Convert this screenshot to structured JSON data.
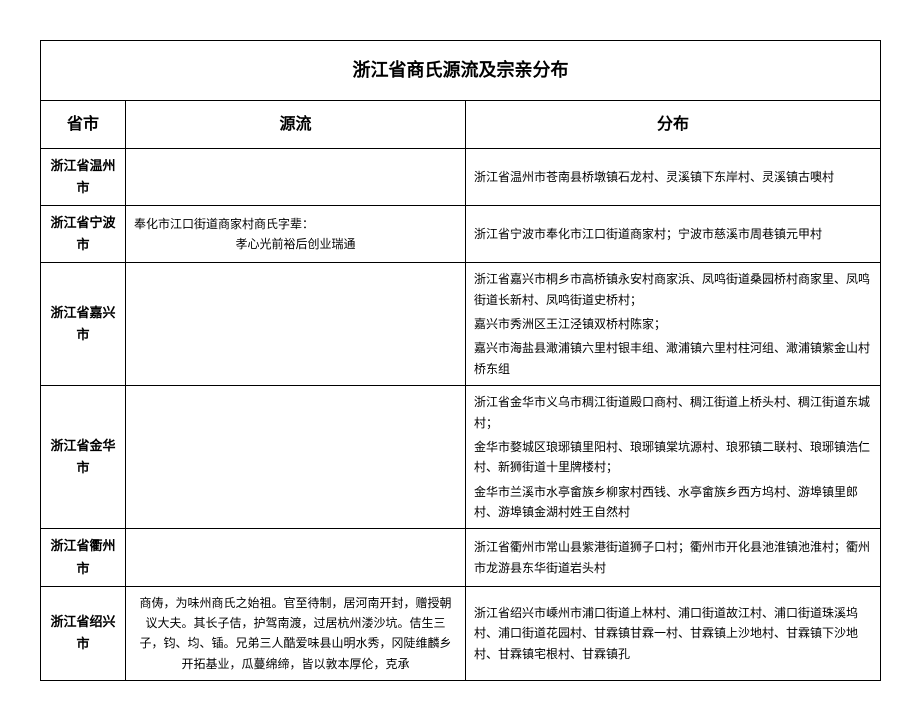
{
  "title": "浙江省商氏源流及宗亲分布",
  "headers": {
    "city": "省市",
    "origin": "源流",
    "distribution": "分布"
  },
  "rows": [
    {
      "city": "浙江省温州市",
      "origin_lines": [],
      "dist_lines": [
        "浙江省温州市苍南县桥墩镇石龙村、灵溪镇下东岸村、灵溪镇古噢村"
      ]
    },
    {
      "city": "浙江省宁波市",
      "origin_lines": [
        "奉化市江口街道商家村商氏字辈：",
        "孝心光前裕后创业瑞通"
      ],
      "dist_lines": [
        "浙江省宁波市奉化市江口街道商家村；宁波市慈溪市周巷镇元甲村"
      ]
    },
    {
      "city": "浙江省嘉兴市",
      "origin_lines": [],
      "dist_lines": [
        "浙江省嘉兴市桐乡市高桥镇永安村商家浜、凤鸣街道桑园桥村商家里、凤鸣街道长新村、凤鸣街道史桥村；",
        "嘉兴市秀洲区王江泾镇双桥村陈家；",
        "嘉兴市海盐县澉浦镇六里村银丰组、澉浦镇六里村柱河组、澉浦镇紫金山村桥东组"
      ]
    },
    {
      "city": "浙江省金华市",
      "origin_lines": [],
      "dist_lines": [
        "浙江省金华市义乌市稠江街道殿口商村、稠江街道上桥头村、稠江街道东城村；",
        "金华市婺城区琅琊镇里阳村、琅琊镇棠坑源村、琅邪镇二联村、琅琊镇浩仁村、新狮街道十里牌楼村；",
        "金华市兰溪市水亭畲族乡柳家村西钱、水亭畲族乡西方坞村、游埠镇里郎村、游埠镇金湖村姓王自然村"
      ]
    },
    {
      "city": "浙江省衢州市",
      "origin_lines": [],
      "dist_lines": [
        "浙江省衢州市常山县紫港街道狮子口村；衢州市开化县池淮镇池淮村；衢州市龙游县东华街道岩头村"
      ]
    },
    {
      "city": "浙江省绍兴市",
      "origin_lines": [
        "商俦，为味州商氏之始祖。官至待制，居河南开封，赠授朝议大夫。其长子佶，护驾南渡，过居杭州溇沙坑。佶生三子，钧、均、锸。兄弟三人酷爱味县山明水秀，冈陡维麟乡开拓基业，瓜蔓绵缔，皆以敦本厚伦，克承"
      ],
      "dist_lines": [
        "浙江省绍兴市嵊州市浦口街道上林村、浦口街道故江村、浦口街道珠溪坞村、浦口街道花园村、甘霖镇甘霖一村、甘霖镇上沙地村、甘霖镇下沙地村、甘霖镇宅根村、甘霖镇孔"
      ]
    }
  ],
  "style": {
    "border_color": "#000000",
    "background_color": "#ffffff",
    "title_fontsize": 18,
    "header_fontsize": 16,
    "city_fontsize": 13,
    "body_fontsize": 12,
    "font_family": "SimSun"
  }
}
